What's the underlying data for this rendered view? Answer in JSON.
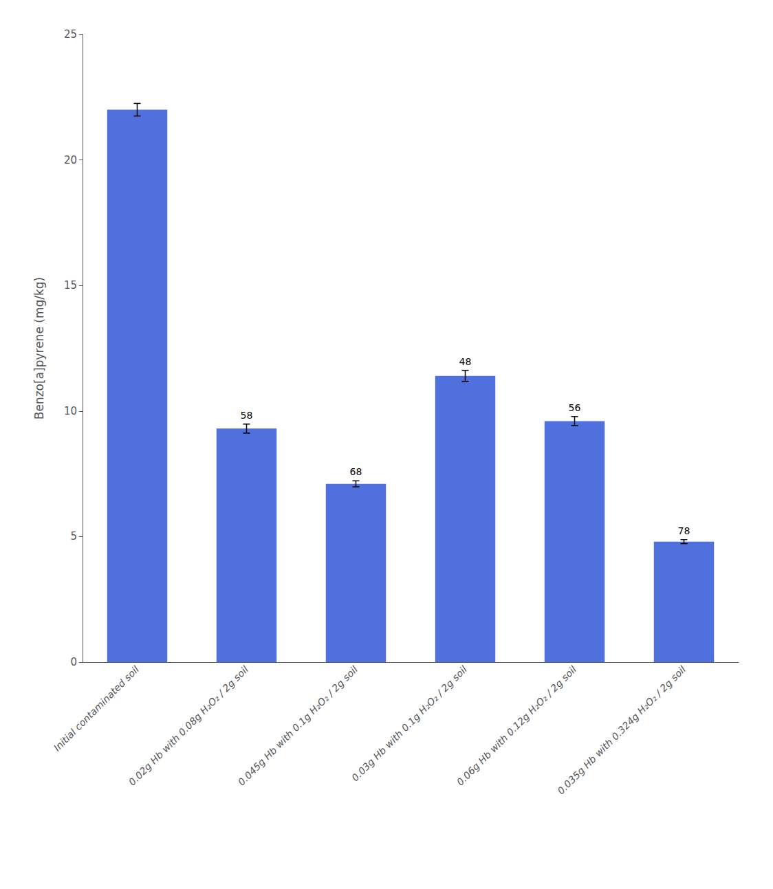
{
  "chart_data": {
    "type": "bar",
    "categories": [
      "Initial contaminated soil",
      "0.02g Hb with 0.08g H₂O₂ / 2g soil",
      "0.045g Hb with 0.1g H₂O₂ / 2g soil",
      "0.03g Hb with 0.1g H₂O₂ / 2g soil",
      "0.06g Hb with 0.12g H₂O₂ / 2g soil",
      "0.035g Hb with 0.324g H₂O₂ / 2g soil"
    ],
    "values": [
      22.0,
      9.3,
      7.1,
      11.4,
      9.6,
      4.8
    ],
    "errors": [
      0.25,
      0.18,
      0.12,
      0.22,
      0.18,
      0.08
    ],
    "annotations": [
      null,
      "58",
      "68",
      "48",
      "56",
      "78"
    ],
    "ylabel": "Benzo[a]pyrene (mg/kg)",
    "ylim": [
      0,
      25
    ],
    "yticks": [
      0,
      5,
      10,
      15,
      20,
      25
    ],
    "grid": false
  }
}
